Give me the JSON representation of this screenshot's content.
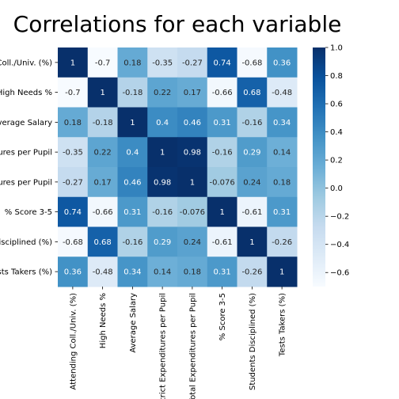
{
  "chart_data": {
    "type": "heatmap",
    "title": "Correlations for each variable",
    "x_labels": [
      "Attending Coll./Univ. (%)",
      "High Needs %",
      "Average Salary",
      "District Expenditures per Pupil",
      "Total Expenditures per Pupil",
      "% Score 3-5",
      "Students Disciplined (%)",
      "Tests Takers (%)"
    ],
    "y_labels": [
      "Coll./Univ. (%)",
      "High Needs %",
      "Average Salary",
      "ures per Pupil",
      "ures per Pupil",
      "% Score 3-5",
      "Disciplined (%)",
      "sts Takers (%)"
    ],
    "values": [
      [
        1,
        -0.7,
        0.18,
        -0.35,
        -0.27,
        0.74,
        -0.68,
        0.36
      ],
      [
        -0.7,
        1,
        -0.18,
        0.22,
        0.17,
        -0.66,
        0.68,
        -0.48
      ],
      [
        0.18,
        -0.18,
        1,
        0.4,
        0.46,
        0.31,
        -0.16,
        0.34
      ],
      [
        -0.35,
        0.22,
        0.4,
        1,
        0.98,
        -0.16,
        0.29,
        0.14
      ],
      [
        -0.27,
        0.17,
        0.46,
        0.98,
        1,
        -0.076,
        0.24,
        0.18
      ],
      [
        0.74,
        -0.66,
        0.31,
        -0.16,
        -0.076,
        1,
        -0.61,
        0.31
      ],
      [
        -0.68,
        0.68,
        -0.16,
        0.29,
        0.24,
        -0.61,
        1,
        -0.26
      ],
      [
        0.36,
        -0.48,
        0.34,
        0.14,
        0.18,
        0.31,
        -0.26,
        1
      ]
    ],
    "annotations": [
      [
        "1",
        "-0.7",
        "0.18",
        "-0.35",
        "-0.27",
        "0.74",
        "-0.68",
        "0.36"
      ],
      [
        "-0.7",
        "1",
        "-0.18",
        "0.22",
        "0.17",
        "-0.66",
        "0.68",
        "-0.48"
      ],
      [
        "0.18",
        "-0.18",
        "1",
        "0.4",
        "0.46",
        "0.31",
        "-0.16",
        "0.34"
      ],
      [
        "-0.35",
        "0.22",
        "0.4",
        "1",
        "0.98",
        "-0.16",
        "0.29",
        "0.14"
      ],
      [
        "-0.27",
        "0.17",
        "0.46",
        "0.98",
        "1",
        "-0.076",
        "0.24",
        "0.18"
      ],
      [
        "0.74",
        "-0.66",
        "0.31",
        "-0.16",
        "-0.076",
        "1",
        "-0.61",
        "0.31"
      ],
      [
        "-0.68",
        "0.68",
        "-0.16",
        "0.29",
        "0.24",
        "-0.61",
        "1",
        "-0.26"
      ],
      [
        "0.36",
        "-0.48",
        "0.34",
        "0.14",
        "0.18",
        "0.31",
        "-0.26",
        "1"
      ]
    ],
    "colormap": "Blues",
    "vmin": -0.7,
    "vmax": 1.0,
    "colorbar_ticks": [
      1.0,
      0.8,
      0.6,
      0.4,
      0.2,
      0.0,
      -0.2,
      -0.4,
      -0.6
    ],
    "colorbar_tick_labels": [
      "1.0",
      "0.8",
      "0.6",
      "0.4",
      "0.2",
      "0.0",
      "−0.2",
      "−0.4",
      "−0.6"
    ]
  }
}
